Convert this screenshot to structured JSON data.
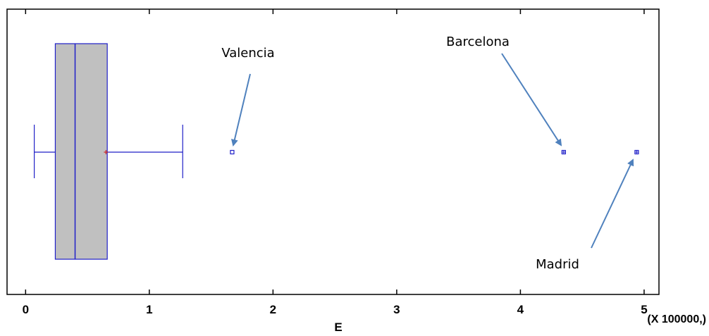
{
  "chart_data": {
    "type": "boxplot",
    "title": "",
    "xlabel": "E",
    "x_scale_label": "(X 100000,)",
    "xlim": [
      -0.15,
      5.12
    ],
    "xticks": [
      0,
      1,
      2,
      3,
      4,
      5
    ],
    "xtick_labels": [
      "0",
      "1",
      "2",
      "3",
      "4",
      "5"
    ],
    "box": {
      "whisker_low": 0.07,
      "q1": 0.24,
      "median": 0.4,
      "mean": 0.65,
      "q3": 0.66,
      "whisker_high": 1.27
    },
    "outliers": [
      {
        "label": "Valencia",
        "value": 1.67,
        "kind": "outside"
      },
      {
        "label": "Barcelona",
        "value": 4.35,
        "kind": "far-out"
      },
      {
        "label": "Madrid",
        "value": 4.94,
        "kind": "far-out"
      }
    ],
    "colors": {
      "box_fill": "#c0c0c0",
      "box_line": "#1f1fc8",
      "mean_marker": "#cc2222",
      "arrow": "#4f81bd",
      "frame": "#000000"
    }
  }
}
